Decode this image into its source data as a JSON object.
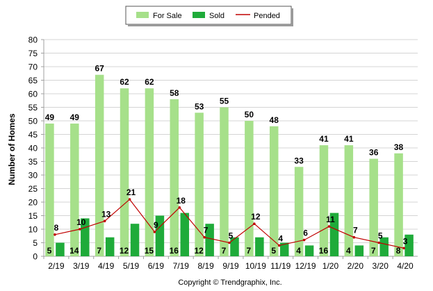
{
  "legend": {
    "items": [
      {
        "label": "For Sale",
        "color": "#a6e08a",
        "kind": "bar"
      },
      {
        "label": "Sold",
        "color": "#1fab3a",
        "kind": "bar"
      },
      {
        "label": "Pended",
        "color": "#c00000",
        "kind": "line"
      }
    ]
  },
  "footer": {
    "copyright": "Copyright © Trendgraphix, Inc."
  },
  "chart_data": {
    "type": "bar",
    "title": "",
    "xlabel": "",
    "ylabel": "Number of Homes",
    "ylim": [
      0,
      80
    ],
    "yticks": [
      0,
      5,
      10,
      15,
      20,
      25,
      30,
      35,
      40,
      45,
      50,
      55,
      60,
      65,
      70,
      75,
      80
    ],
    "grid": true,
    "legend_position": "top-center",
    "categories": [
      "2/19",
      "3/19",
      "4/19",
      "5/19",
      "6/19",
      "7/19",
      "8/19",
      "9/19",
      "10/19",
      "11/19",
      "12/19",
      "1/20",
      "2/20",
      "3/20",
      "4/20"
    ],
    "series": [
      {
        "name": "For Sale",
        "type": "bar",
        "color": "#a6e08a",
        "values": [
          49,
          49,
          67,
          62,
          62,
          58,
          53,
          55,
          50,
          48,
          33,
          41,
          41,
          36,
          38
        ]
      },
      {
        "name": "Sold",
        "type": "bar",
        "color": "#1fab3a",
        "values": [
          5,
          14,
          7,
          12,
          15,
          16,
          12,
          7,
          7,
          5,
          4,
          16,
          4,
          7,
          8
        ]
      },
      {
        "name": "Pended",
        "type": "line",
        "color": "#c00000",
        "values": [
          8,
          10,
          13,
          21,
          9,
          18,
          7,
          5,
          12,
          4,
          6,
          11,
          7,
          5,
          3
        ]
      }
    ]
  }
}
